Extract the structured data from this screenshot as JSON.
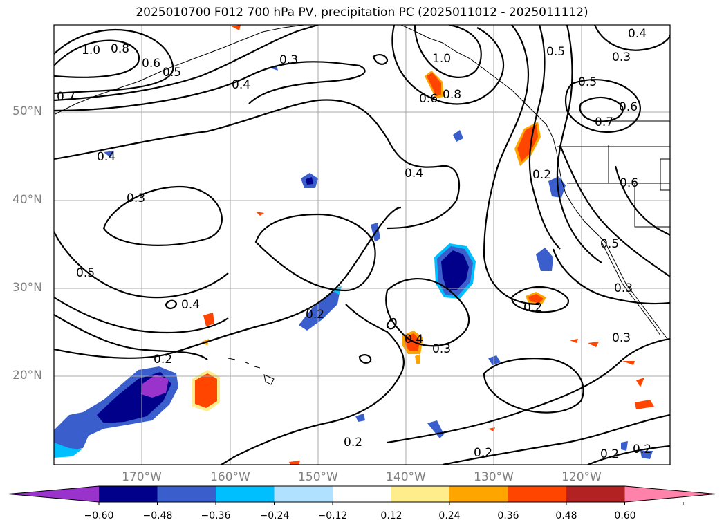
{
  "title": "2025010700 F012 700 hPa PV, precipitation PC (2025011012 - 2025011112)",
  "lat_labels": [
    "50°N",
    "40°N",
    "30°N",
    "20°N"
  ],
  "lon_labels": [
    "170°W",
    "160°W",
    "150°W",
    "140°W",
    "130°W",
    "120°W"
  ],
  "colorbar": {
    "ticks": [
      "−0.60",
      "−0.48",
      "−0.36",
      "−0.24",
      "−0.12",
      "0.12",
      "0.24",
      "0.36",
      "0.48",
      "0.60"
    ],
    "colors": [
      "#9a33cc",
      "#00008b",
      "#3a5fcd",
      "#00bfff",
      "#b0e2ff",
      "#ffffff",
      "#ffec8b",
      "#ffa500",
      "#ff4500",
      "#b22222",
      "#ff82ab"
    ]
  },
  "contour_labels": [
    "1.0",
    "0.8",
    "0.6",
    "0.5",
    "0.7",
    "0.4",
    "0.3",
    "0.4",
    "0.3",
    "0.5",
    "0.4",
    "0.2",
    "0.2",
    "0.2",
    "0.3",
    "0.4",
    "0.4",
    "0.2",
    "0.2",
    "0.3",
    "0.2",
    "0.2",
    "0.6",
    "0.8",
    "1.0",
    "0.5",
    "0.4",
    "0.3",
    "0.5",
    "0.6",
    "0.7",
    "0.6",
    "0.5",
    "0.3",
    "0.2"
  ]
}
